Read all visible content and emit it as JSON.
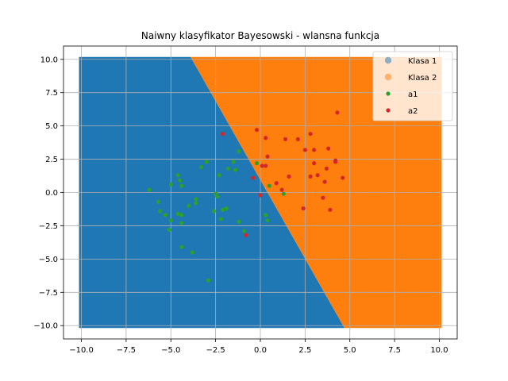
{
  "chart_data": {
    "type": "scatter",
    "title": "Naiwny klasyfikator Bayesowski - wlansna funkcja",
    "xlabel": "",
    "ylabel": "",
    "xlim": [
      -11.0,
      11.0
    ],
    "ylim": [
      -11.0,
      11.0
    ],
    "x_ticks": [
      -10.0,
      -7.5,
      -5.0,
      -2.5,
      0.0,
      2.5,
      5.0,
      7.5,
      10.0
    ],
    "y_ticks": [
      -10.0,
      -7.5,
      -5.0,
      -2.5,
      0.0,
      2.5,
      5.0,
      7.5,
      10.0
    ],
    "x_tick_labels": [
      "−10.0",
      "−7.5",
      "−5.0",
      "−2.5",
      "0.0",
      "2.5",
      "5.0",
      "7.5",
      "10.0"
    ],
    "y_tick_labels": [
      "−10.0",
      "−7.5",
      "−5.0",
      "−2.5",
      "0.0",
      "2.5",
      "5.0",
      "7.5",
      "10.0"
    ],
    "grid": true,
    "legend_position": "top-right",
    "decision_regions": {
      "domain_x": [
        -10.0,
        10.0
      ],
      "domain_y": [
        -10.0,
        10.0
      ],
      "boundary": [
        [
          -3.9,
          10.0
        ],
        [
          4.7,
          -10.0
        ]
      ],
      "left_region": "Klasa 1",
      "right_region": "Klasa 2"
    },
    "series": [
      {
        "name": "Klasa 1",
        "kind": "region",
        "color": "#1f77b4",
        "alpha": 0.5
      },
      {
        "name": "Klasa 2",
        "kind": "region",
        "color": "#ff7f0e",
        "alpha": 0.5
      },
      {
        "name": "a1",
        "kind": "points",
        "color": "#2ca02c",
        "points": [
          [
            -6.2,
            0.2
          ],
          [
            -5.7,
            -0.7
          ],
          [
            -5.6,
            -1.4
          ],
          [
            -5.3,
            -1.7
          ],
          [
            -5.1,
            -2.8
          ],
          [
            -5.0,
            0.6
          ],
          [
            -5.0,
            -2.1
          ],
          [
            -4.6,
            -1.6
          ],
          [
            -4.6,
            1.3
          ],
          [
            -4.5,
            0.9
          ],
          [
            -4.4,
            0.5
          ],
          [
            -4.4,
            -1.7
          ],
          [
            -4.4,
            -2.3
          ],
          [
            -4.4,
            -4.1
          ],
          [
            -4.0,
            -1.0
          ],
          [
            -3.8,
            -4.5
          ],
          [
            -3.6,
            -0.5
          ],
          [
            -3.6,
            -0.8
          ],
          [
            -3.3,
            1.9
          ],
          [
            -3.0,
            2.3
          ],
          [
            -2.9,
            -6.6
          ],
          [
            -2.6,
            -1.4
          ],
          [
            -2.5,
            -0.1
          ],
          [
            -2.4,
            -0.3
          ],
          [
            -2.3,
            1.3
          ],
          [
            -2.2,
            -2.0
          ],
          [
            -2.1,
            -1.3
          ],
          [
            -1.9,
            -1.2
          ],
          [
            -1.8,
            1.8
          ],
          [
            -1.5,
            2.3
          ],
          [
            -1.4,
            1.7
          ],
          [
            -1.2,
            3.1
          ],
          [
            -1.2,
            -2.2
          ],
          [
            -0.9,
            -2.9
          ],
          [
            -0.2,
            2.2
          ],
          [
            0.3,
            -1.7
          ],
          [
            0.4,
            -2.1
          ],
          [
            0.5,
            0.5
          ],
          [
            1.3,
            -0.1
          ]
        ]
      },
      {
        "name": "a2",
        "kind": "points",
        "color": "#d62728",
        "points": [
          [
            -2.1,
            4.4
          ],
          [
            -0.8,
            -3.2
          ],
          [
            -0.4,
            1.1
          ],
          [
            -0.2,
            4.7
          ],
          [
            0.0,
            -0.2
          ],
          [
            0.1,
            2.0
          ],
          [
            0.3,
            2.0
          ],
          [
            0.3,
            4.1
          ],
          [
            0.4,
            2.7
          ],
          [
            0.9,
            0.7
          ],
          [
            1.2,
            0.2
          ],
          [
            1.4,
            4.0
          ],
          [
            1.6,
            1.2
          ],
          [
            2.1,
            4.0
          ],
          [
            2.4,
            -1.2
          ],
          [
            2.5,
            3.2
          ],
          [
            2.8,
            4.4
          ],
          [
            2.8,
            1.2
          ],
          [
            3.0,
            2.2
          ],
          [
            3.0,
            3.2
          ],
          [
            3.2,
            1.3
          ],
          [
            3.5,
            -0.4
          ],
          [
            3.6,
            0.8
          ],
          [
            3.7,
            1.8
          ],
          [
            3.8,
            3.3
          ],
          [
            3.9,
            -1.3
          ],
          [
            4.2,
            2.3
          ],
          [
            4.2,
            2.4
          ],
          [
            4.3,
            6.0
          ],
          [
            4.6,
            1.1
          ]
        ]
      }
    ]
  }
}
